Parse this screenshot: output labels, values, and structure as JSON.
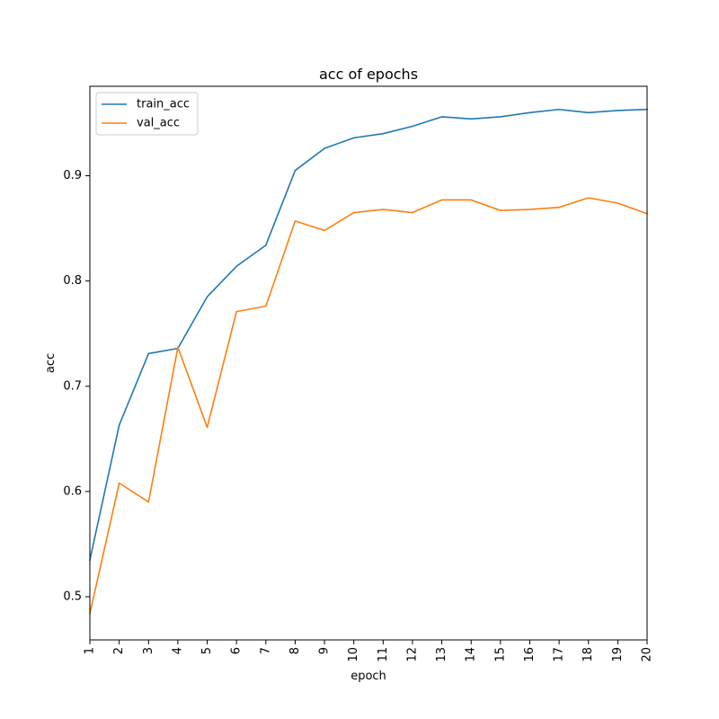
{
  "chart_data": {
    "type": "line",
    "title": "acc of epochs",
    "xlabel": "epoch",
    "ylabel": "acc",
    "x": [
      1,
      2,
      3,
      4,
      5,
      6,
      7,
      8,
      9,
      10,
      11,
      12,
      13,
      14,
      15,
      16,
      17,
      18,
      19,
      20
    ],
    "xlim": [
      1,
      20
    ],
    "ylim": [
      0.459,
      0.985
    ],
    "yticks": [
      0.5,
      0.6,
      0.7,
      0.8,
      0.9
    ],
    "ytick_labels": [
      "0.5",
      "0.6",
      "0.7",
      "0.8",
      "0.9"
    ],
    "xtick_labels": [
      "1",
      "2",
      "3",
      "4",
      "5",
      "6",
      "7",
      "8",
      "9",
      "10",
      "11",
      "12",
      "13",
      "14",
      "15",
      "16",
      "17",
      "18",
      "19",
      "20"
    ],
    "grid": false,
    "legend_position": "upper-left",
    "series": [
      {
        "name": "train_acc",
        "color": "#1f77b4",
        "values": [
          0.535,
          0.663,
          0.731,
          0.736,
          0.785,
          0.814,
          0.834,
          0.905,
          0.926,
          0.936,
          0.94,
          0.947,
          0.956,
          0.954,
          0.956,
          0.96,
          0.963,
          0.96,
          0.962,
          0.963
        ]
      },
      {
        "name": "val_acc",
        "color": "#ff7f0e",
        "values": [
          0.484,
          0.608,
          0.59,
          0.737,
          0.661,
          0.771,
          0.776,
          0.857,
          0.848,
          0.865,
          0.868,
          0.865,
          0.877,
          0.877,
          0.867,
          0.868,
          0.87,
          0.879,
          0.874,
          0.864
        ]
      }
    ]
  }
}
